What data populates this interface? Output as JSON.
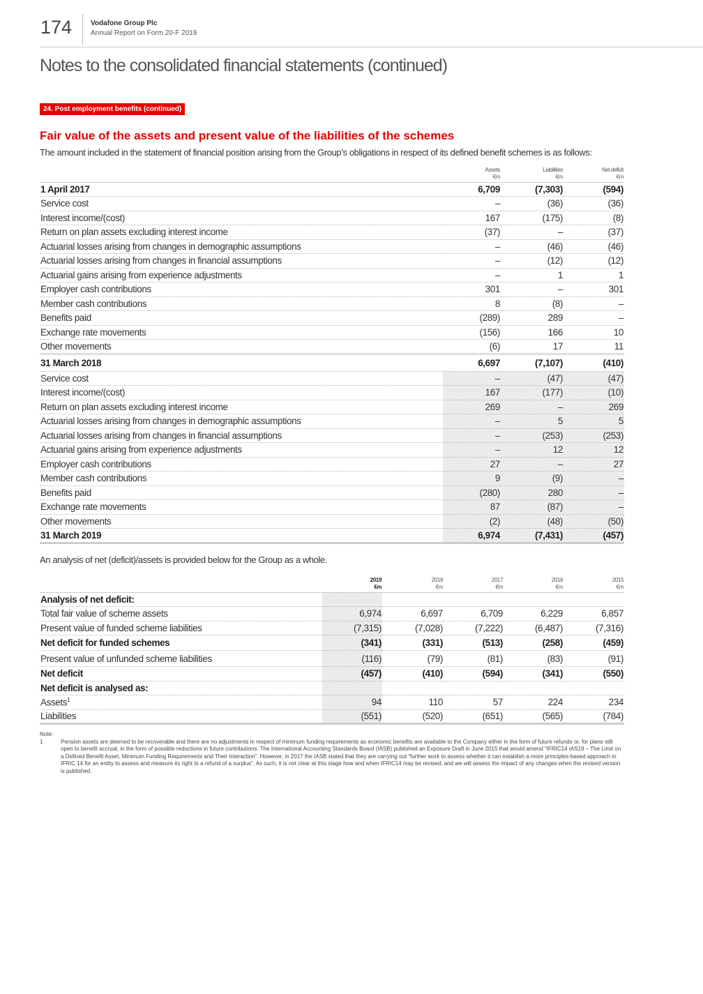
{
  "header": {
    "page_number": "174",
    "company": "Vodafone Group Plc",
    "report": "Annual Report on Form 20-F 2019"
  },
  "title": "Notes to the consolidated financial statements (continued)",
  "section_tag": "24. Post employment benefits (continued)",
  "heading": "Fair value of the assets and present value of the liabilities of the schemes",
  "intro": "The amount included in the statement of financial position arising from the Group’s obligations in respect of its defined benefit schemes is as follows:",
  "table1": {
    "columns": [
      {
        "name": "Assets",
        "unit": "€m"
      },
      {
        "name": "Liabilities",
        "unit": "€m"
      },
      {
        "name": "Net deficit",
        "unit": "€m"
      }
    ],
    "rows": [
      {
        "label": "1 April 2017",
        "values": [
          "6,709",
          "(7,303)",
          "(594)"
        ]
      },
      {
        "label": "Service cost",
        "values": [
          "–",
          "(36)",
          "(36)"
        ]
      },
      {
        "label": "Interest income/(cost)",
        "values": [
          "167",
          "(175)",
          "(8)"
        ]
      },
      {
        "label": "Return on plan assets excluding interest income",
        "values": [
          "(37)",
          "–",
          "(37)"
        ]
      },
      {
        "label": "Actuarial losses arising from changes in demographic assumptions",
        "values": [
          "–",
          "(46)",
          "(46)"
        ]
      },
      {
        "label": "Actuarial losses arising from changes in financial assumptions",
        "values": [
          "–",
          "(12)",
          "(12)"
        ]
      },
      {
        "label": "Actuarial gains arising from experience adjustments",
        "values": [
          "–",
          "1",
          "1"
        ]
      },
      {
        "label": "Employer cash contributions",
        "values": [
          "301",
          "–",
          "301"
        ]
      },
      {
        "label": "Member cash contributions",
        "values": [
          "8",
          "(8)",
          "–"
        ]
      },
      {
        "label": "Benefits paid",
        "values": [
          "(289)",
          "289",
          "–"
        ]
      },
      {
        "label": "Exchange rate movements",
        "values": [
          "(156)",
          "166",
          "10"
        ]
      },
      {
        "label": "Other movements",
        "values": [
          "(6)",
          "17",
          "11"
        ]
      },
      {
        "label": "31 March 2018",
        "values": [
          "6,697",
          "(7,107)",
          "(410)"
        ]
      },
      {
        "label": "Service cost",
        "values": [
          "–",
          "(47)",
          "(47)"
        ]
      },
      {
        "label": "Interest income/(cost)",
        "values": [
          "167",
          "(177)",
          "(10)"
        ]
      },
      {
        "label": "Return on plan assets excluding interest income",
        "values": [
          "269",
          "–",
          "269"
        ]
      },
      {
        "label": "Actuarial losses arising from changes in demographic assumptions",
        "values": [
          "–",
          "5",
          "5"
        ]
      },
      {
        "label": "Actuarial losses arising from changes in financial assumptions",
        "values": [
          "–",
          "(253)",
          "(253)"
        ]
      },
      {
        "label": "Actuarial gains arising from experience adjustments",
        "values": [
          "–",
          "12",
          "12"
        ]
      },
      {
        "label": "Employer cash contributions",
        "values": [
          "27",
          "–",
          "27"
        ]
      },
      {
        "label": "Member cash contributions",
        "values": [
          "9",
          "(9)",
          "–"
        ]
      },
      {
        "label": "Benefits paid",
        "values": [
          "(280)",
          "280",
          "–"
        ]
      },
      {
        "label": "Exchange rate movements",
        "values": [
          "87",
          "(87)",
          "–"
        ]
      },
      {
        "label": "Other movements",
        "values": [
          "(2)",
          "(48)",
          "(50)"
        ]
      },
      {
        "label": "31 March 2019",
        "values": [
          "6,974",
          "(7,431)",
          "(457)"
        ]
      }
    ]
  },
  "table2_intro": "An analysis of net (deficit)/assets is provided below for the Group as a whole.",
  "table2": {
    "columns": [
      {
        "name": "2019",
        "unit": "€m"
      },
      {
        "name": "2018",
        "unit": "€m"
      },
      {
        "name": "2017",
        "unit": "€m"
      },
      {
        "name": "2016",
        "unit": "€m"
      },
      {
        "name": "2015",
        "unit": "€m"
      }
    ],
    "rows": [
      {
        "label": "Analysis of net deficit:"
      },
      {
        "label": "Total fair value of scheme assets",
        "values": [
          "6,974",
          "6,697",
          "6,709",
          "6,229",
          "6,857"
        ]
      },
      {
        "label": "Present value of funded scheme liabilities",
        "values": [
          "(7,315)",
          "(7,028)",
          "(7,222)",
          "(6,487)",
          "(7,316)"
        ]
      },
      {
        "label": "Net deficit for funded schemes",
        "values": [
          "(341)",
          "(331)",
          "(513)",
          "(258)",
          "(459)"
        ]
      },
      {
        "label": "Present value of unfunded scheme liabilities",
        "values": [
          "(116)",
          "(79)",
          "(81)",
          "(83)",
          "(91)"
        ]
      },
      {
        "label": "Net deficit",
        "values": [
          "(457)",
          "(410)",
          "(594)",
          "(341)",
          "(550)"
        ]
      },
      {
        "label": "Net deficit is analysed as:"
      },
      {
        "label": "Assets",
        "note": "1",
        "values": [
          "94",
          "110",
          "57",
          "224",
          "234"
        ]
      },
      {
        "label": "Liabilities",
        "values": [
          "(551)",
          "(520)",
          "(651)",
          "(565)",
          "(784)"
        ]
      }
    ]
  },
  "note": {
    "label": "Note:",
    "items": [
      {
        "marker": "1",
        "text": "Pension assets are deemed to be recoverable and there are no adjustments in respect of minimum funding requirements as economic benefits are available to the Company either in the form of future refunds or, for plans still open to benefit accrual, in the form of possible reductions in future contributions. The International Accounting Standards Board (IASB) published an Exposure Draft in June 2015 that would amend “IFRIC14 IAS19 – The Limit on a Defined Benefit Asset, Minimum Funding Requirements and Their Interaction”. However, in 2017 the IASB stated that they are carrying out “further work to assess whether it can establish a more principles-based approach in IFRIC 14 for an entity to assess and measure its right to a refund of a surplus”. As such, it is not clear at this stage how and when IFRIC14 may be revised, and we will assess the impact of any changes when the revised version is published."
      }
    ]
  }
}
